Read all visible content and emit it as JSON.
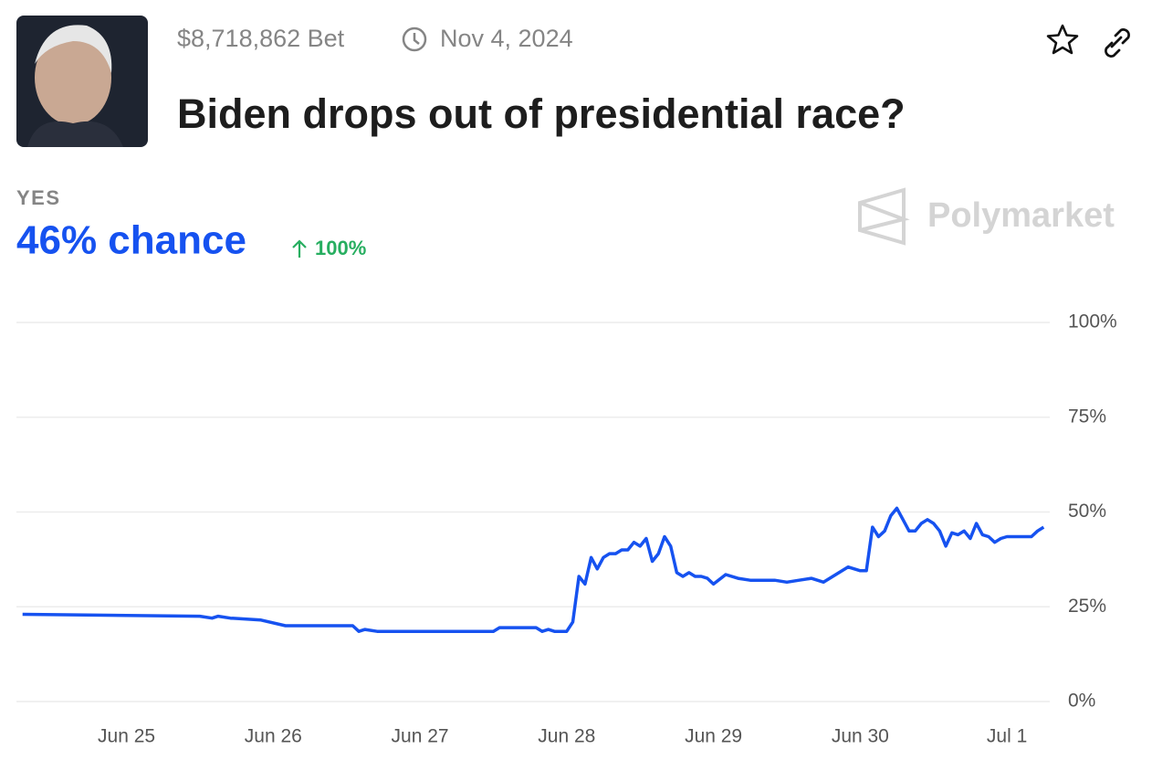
{
  "header": {
    "volume": "$8,718,862 Bet",
    "end_date": "Nov 4, 2024",
    "title": "Biden drops out of presidential race?",
    "outcome": "YES",
    "chance": "46% chance",
    "change": "100%",
    "brand": "Polymarket"
  },
  "chart_data": {
    "type": "line",
    "x": [
      "Jun 24 07:00",
      "Jun 25 12:00",
      "Jun 25 14:00",
      "Jun 25 15:00",
      "Jun 25 17:00",
      "Jun 25 22:00",
      "Jun 26 02:00",
      "Jun 26 13:00",
      "Jun 26 14:00",
      "Jun 26 15:00",
      "Jun 26 17:00",
      "Jun 27 12:00",
      "Jun 27 13:00",
      "Jun 27 19:00",
      "Jun 27 20:00",
      "Jun 27 21:00",
      "Jun 27 22:00",
      "Jun 28 00:00",
      "Jun 28 01:00",
      "Jun 28 02:00",
      "Jun 28 03:00",
      "Jun 28 04:00",
      "Jun 28 05:00",
      "Jun 28 06:00",
      "Jun 28 07:00",
      "Jun 28 08:00",
      "Jun 28 09:00",
      "Jun 28 10:00",
      "Jun 28 11:00",
      "Jun 28 12:00",
      "Jun 28 13:00",
      "Jun 28 14:00",
      "Jun 28 15:00",
      "Jun 28 16:00",
      "Jun 28 17:00",
      "Jun 28 18:00",
      "Jun 28 19:00",
      "Jun 28 20:00",
      "Jun 28 21:00",
      "Jun 28 22:00",
      "Jun 28 23:00",
      "Jun 29 00:00",
      "Jun 29 02:00",
      "Jun 29 04:00",
      "Jun 29 06:00",
      "Jun 29 08:00",
      "Jun 29 10:00",
      "Jun 29 12:00",
      "Jun 29 14:00",
      "Jun 29 16:00",
      "Jun 29 18:00",
      "Jun 29 20:00",
      "Jun 29 22:00",
      "Jun 30 00:00",
      "Jun 30 01:00",
      "Jun 30 02:00",
      "Jun 30 03:00",
      "Jun 30 04:00",
      "Jun 30 05:00",
      "Jun 30 06:00",
      "Jun 30 07:00",
      "Jun 30 08:00",
      "Jun 30 09:00",
      "Jun 30 10:00",
      "Jun 30 11:00",
      "Jun 30 12:00",
      "Jun 30 13:00",
      "Jun 30 14:00",
      "Jun 30 15:00",
      "Jun 30 16:00",
      "Jun 30 17:00",
      "Jun 30 18:00",
      "Jun 30 19:00",
      "Jun 30 20:00",
      "Jun 30 21:00",
      "Jun 30 22:00",
      "Jun 30 23:00",
      "Jul 1 00:00",
      "Jul 1 03:00",
      "Jul 1 04:00",
      "Jul 1 05:00",
      "Jul 1 06:00"
    ],
    "series": [
      {
        "name": "YES",
        "color": "#1652f0",
        "values": [
          23,
          22.5,
          22,
          22.5,
          22,
          21.5,
          20,
          20,
          18.5,
          19,
          18.5,
          18.5,
          19.5,
          19.5,
          18.5,
          19,
          18.5,
          18.5,
          21,
          33,
          31,
          38,
          35,
          38,
          39,
          39,
          40,
          40,
          42,
          41,
          43,
          37,
          39,
          43.5,
          41,
          34,
          33,
          34,
          33,
          33,
          32.5,
          31,
          33.5,
          32.5,
          32,
          32,
          32,
          31.5,
          32,
          32.5,
          31.5,
          33.5,
          35.5,
          34.5,
          34.5,
          46,
          43.5,
          45,
          49,
          51,
          48,
          45,
          45,
          47,
          48,
          47,
          45,
          41,
          44.5,
          44,
          45,
          43,
          47,
          44,
          43.5,
          42,
          43,
          43.5,
          43.5,
          43.5,
          45,
          46
        ]
      }
    ],
    "xlim": [
      "Jun 24 06:00",
      "Jul 1 07:00"
    ],
    "xticks": [
      {
        "value": "Jun 25 00:00",
        "label": "Jun 25"
      },
      {
        "value": "Jun 26 00:00",
        "label": "Jun 26"
      },
      {
        "value": "Jun 27 00:00",
        "label": "Jun 27"
      },
      {
        "value": "Jun 28 00:00",
        "label": "Jun 28"
      },
      {
        "value": "Jun 29 00:00",
        "label": "Jun 29"
      },
      {
        "value": "Jun 30 00:00",
        "label": "Jun 30"
      },
      {
        "value": "Jul 1 00:00",
        "label": "Jul 1"
      }
    ],
    "ylim": [
      0,
      100
    ],
    "yticks": [
      {
        "value": 0,
        "label": "0%"
      },
      {
        "value": 25,
        "label": "25%"
      },
      {
        "value": 50,
        "label": "50%"
      },
      {
        "value": 75,
        "label": "75%"
      },
      {
        "value": 100,
        "label": "100%"
      }
    ],
    "grid": true
  }
}
